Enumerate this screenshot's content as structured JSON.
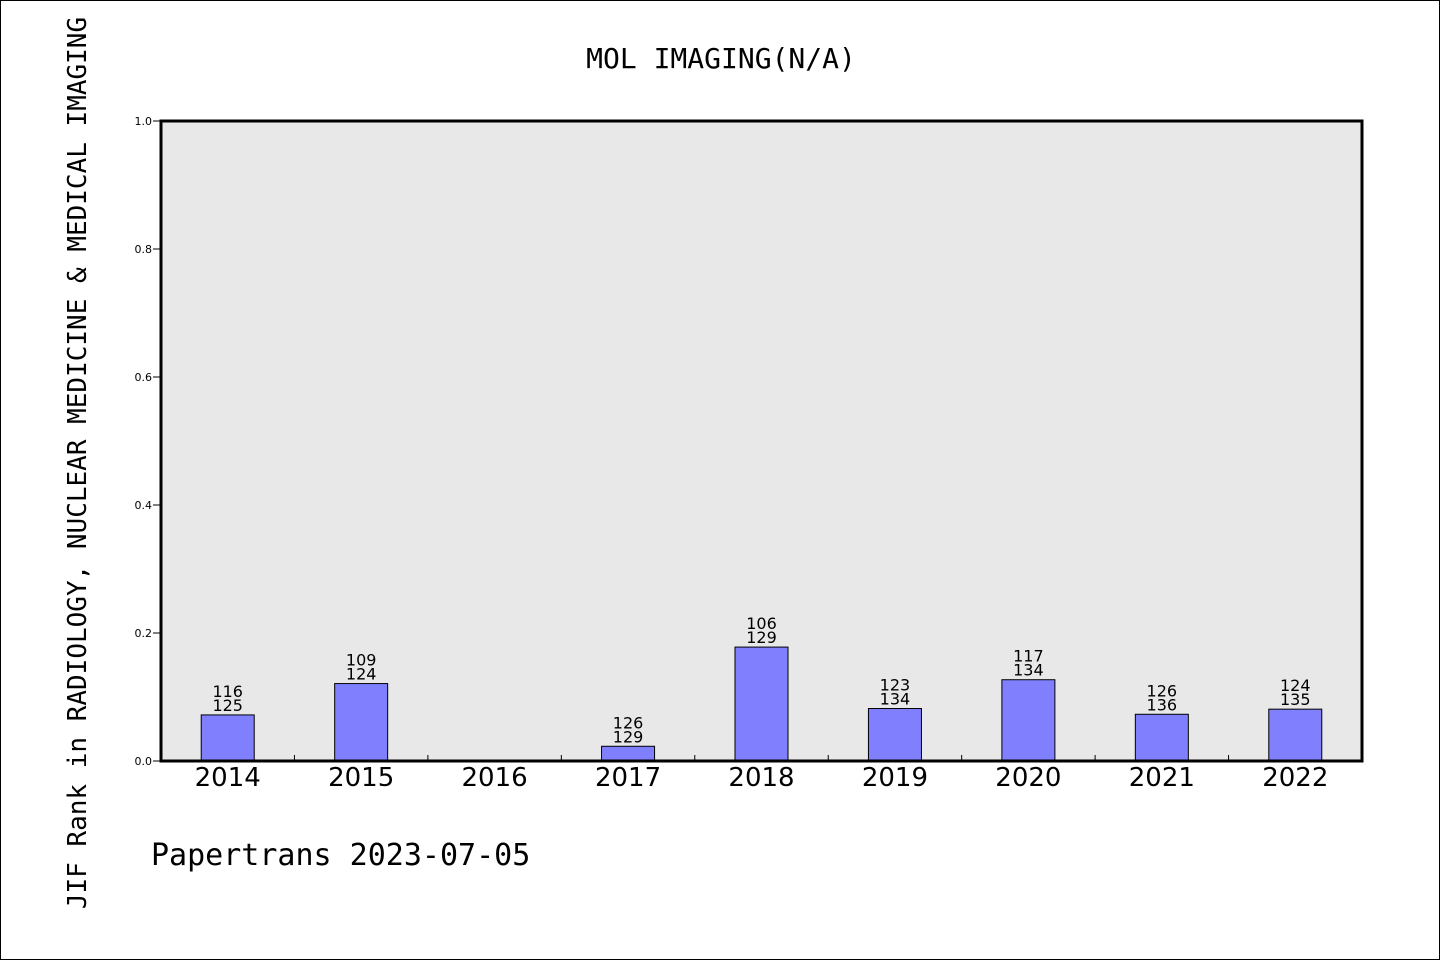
{
  "chart_data": {
    "type": "bar",
    "title": "MOL IMAGING(N/A)",
    "ylabel": "JIF Rank in RADIOLOGY, NUCLEAR MEDICINE & MEDICAL IMAGING",
    "xlabel": "",
    "ylim": [
      0,
      1.0
    ],
    "yticks": [
      "0.0",
      "0.2",
      "0.4",
      "0.6",
      "0.8",
      "1.0"
    ],
    "categories": [
      "2014",
      "2015",
      "2016",
      "2017",
      "2018",
      "2019",
      "2020",
      "2021",
      "2022"
    ],
    "values": [
      0.072,
      0.121,
      null,
      0.023,
      0.178,
      0.082,
      0.127,
      0.073,
      0.081
    ],
    "rank": [
      "116",
      "109",
      "",
      "126",
      "106",
      "123",
      "117",
      "126",
      "124"
    ],
    "total": [
      "125",
      "124",
      "",
      "129",
      "129",
      "134",
      "134",
      "136",
      "135"
    ],
    "grid": false,
    "legend": "none",
    "colors": {
      "bar": "#8080ff",
      "plot_bg": "#e8e8e8",
      "axis": "#000000"
    }
  },
  "footer": {
    "credit": "Papertrans 2023-07-05"
  }
}
